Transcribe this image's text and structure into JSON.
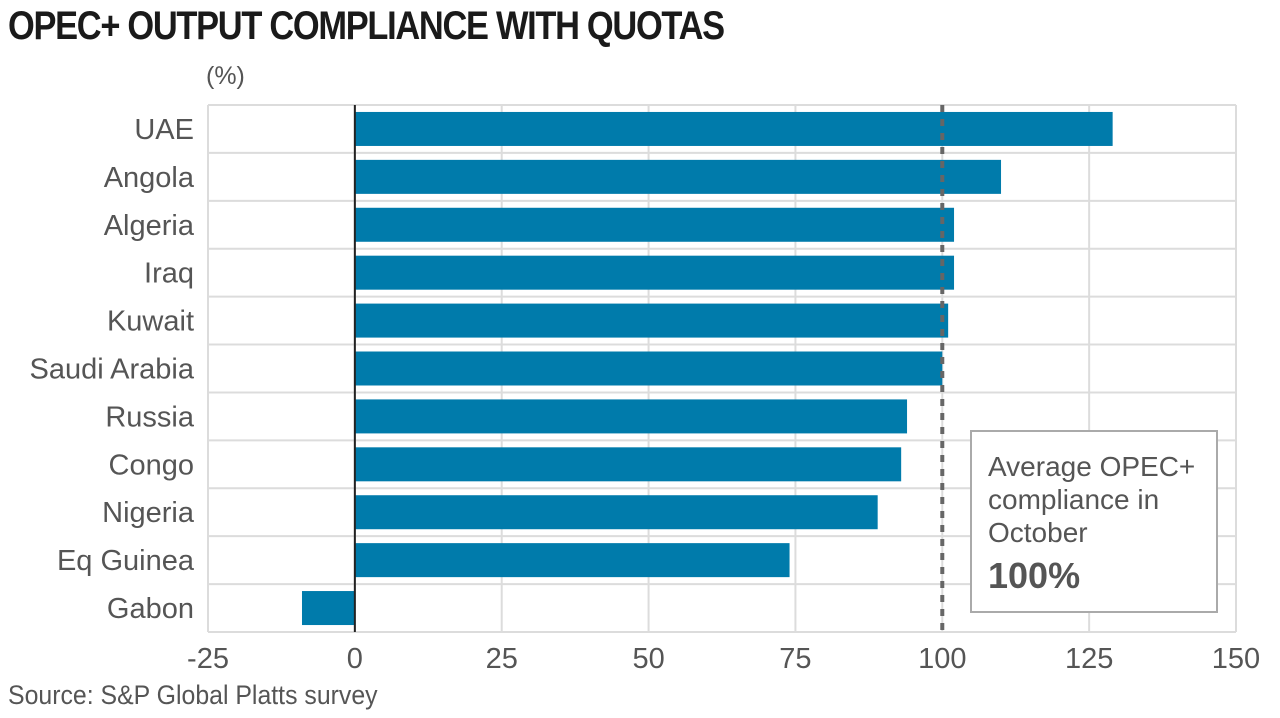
{
  "chart_data": {
    "type": "bar",
    "orientation": "horizontal",
    "title": "OPEC+ OUTPUT COMPLIANCE WITH QUOTAS",
    "unit_label": "(%)",
    "categories": [
      "UAE",
      "Angola",
      "Algeria",
      "Iraq",
      "Kuwait",
      "Saudi Arabia",
      "Russia",
      "Congo",
      "Nigeria",
      "Eq Guinea",
      "Gabon"
    ],
    "values": [
      129,
      110,
      102,
      102,
      101,
      100,
      94,
      93,
      89,
      74,
      -9
    ],
    "xlim": [
      -25,
      150
    ],
    "xticks": [
      -25,
      0,
      25,
      50,
      75,
      100,
      125,
      150
    ],
    "grid": true,
    "reference_line": {
      "value": 100,
      "style": "dashed"
    },
    "annotation": {
      "text": "Average OPEC+ compliance in October",
      "value": "100%"
    },
    "source": "Source: S&P Global Platts survey",
    "colors": {
      "bar": "#007bab",
      "grid": "#dcdcdc",
      "reference": "#666666",
      "text": "#555555"
    }
  }
}
